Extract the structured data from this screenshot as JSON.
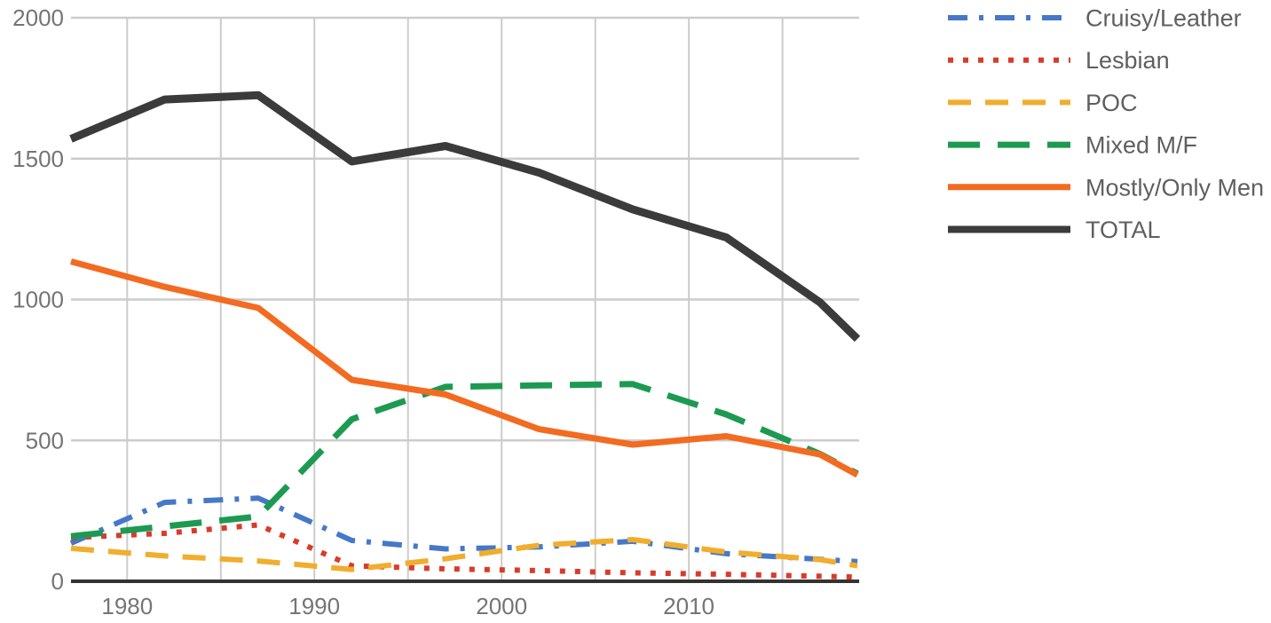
{
  "chart_data": {
    "type": "line",
    "title": "",
    "xlabel": "",
    "ylabel": "",
    "x": [
      1977,
      1982,
      1987,
      1992,
      1997,
      2002,
      2007,
      2012,
      2017,
      2019
    ],
    "series": [
      {
        "name": "Cruisy/Leather",
        "color": "#4678C8",
        "style": "dashdot",
        "width": 6,
        "values": [
          135,
          280,
          295,
          145,
          115,
          122,
          142,
          98,
          78,
          70
        ]
      },
      {
        "name": "Lesbian",
        "color": "#D93B2B",
        "style": "dotted",
        "width": 6,
        "values": [
          155,
          170,
          200,
          55,
          44,
          38,
          30,
          25,
          18,
          15
        ]
      },
      {
        "name": "POC",
        "color": "#F1AD2D",
        "style": "dashed",
        "width": 6,
        "values": [
          117,
          90,
          72,
          42,
          80,
          128,
          148,
          104,
          77,
          55
        ]
      },
      {
        "name": "Mixed M/F",
        "color": "#1D9A52",
        "style": "longdash",
        "width": 7,
        "values": [
          160,
          195,
          230,
          575,
          690,
          695,
          700,
          592,
          452,
          382
        ]
      },
      {
        "name": "Mostly/Only Men",
        "color": "#F26B21",
        "style": "solid",
        "width": 7,
        "values": [
          1135,
          1045,
          970,
          715,
          663,
          540,
          485,
          515,
          450,
          378
        ]
      },
      {
        "name": "TOTAL",
        "color": "#3B3B3B",
        "style": "solid",
        "width": 9,
        "values": [
          1570,
          1710,
          1725,
          1490,
          1545,
          1450,
          1320,
          1220,
          990,
          860
        ]
      }
    ],
    "xlim": [
      1977,
      2019
    ],
    "ylim": [
      0,
      2000
    ],
    "xticks_labeled": [
      1980,
      1990,
      2000,
      2010
    ],
    "xticks_grid": [
      1980,
      1985,
      1990,
      1995,
      2000,
      2005,
      2010,
      2015
    ],
    "yticks": [
      0,
      500,
      1000,
      1500,
      2000
    ],
    "grid": true,
    "legend_position": "right",
    "colors": {
      "gridline": "#cccccc",
      "axis_line": "#333333",
      "tick_label": "#757575",
      "legend_label": "#5f5f5f",
      "background": "#ffffff"
    }
  }
}
